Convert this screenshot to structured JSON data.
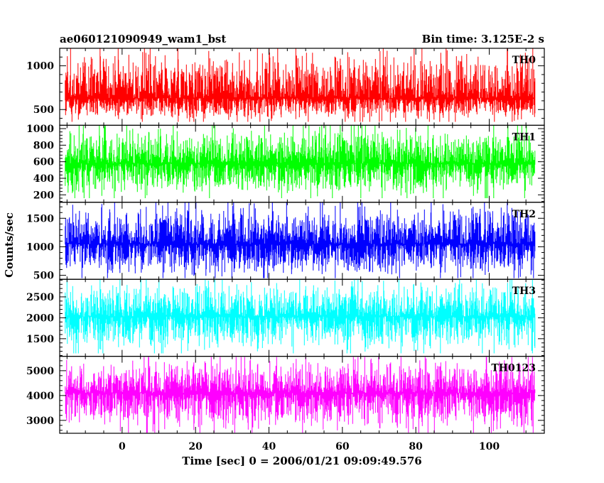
{
  "header": {
    "left_title": "ae060121090949_wam1_bst",
    "right_title": "Bin time: 3.125E-2 s"
  },
  "chart_data": {
    "type": "line",
    "title": "ae060121090949_wam1_bst",
    "subtitle": "Bin time: 3.125E-2 s",
    "xlabel": "Time [sec] 0 = 2006/01/21 09:09:49.576",
    "ylabel": "Counts/sec",
    "xlim": [
      -17,
      115
    ],
    "x_ticks": [
      0,
      20,
      40,
      60,
      80,
      100
    ],
    "x_data_range": [
      -15.5,
      112.5
    ],
    "bin_time_s": 0.03125,
    "grid": false,
    "legend": "none",
    "panels": [
      {
        "name": "TH0",
        "color": "#ff0000",
        "ylim": [
          320,
          1200
        ],
        "y_ticks": [
          500,
          1000
        ],
        "mean": 630,
        "low": 360,
        "high": 1200
      },
      {
        "name": "TH1",
        "color": "#00ff00",
        "ylim": [
          110,
          1040
        ],
        "y_ticks": [
          200,
          400,
          600,
          800,
          1000
        ],
        "mean": 580,
        "low": 160,
        "high": 1040
      },
      {
        "name": "TH2",
        "color": "#0000ff",
        "ylim": [
          430,
          1780
        ],
        "y_ticks": [
          500,
          1000,
          1500
        ],
        "mean": 1050,
        "low": 450,
        "high": 1780
      },
      {
        "name": "TH3",
        "color": "#00ffff",
        "ylim": [
          1080,
          2920
        ],
        "y_ticks": [
          1500,
          2000,
          2500
        ],
        "mean": 2030,
        "low": 1150,
        "high": 2920
      },
      {
        "name": "TH0123",
        "color": "#ff00ff",
        "ylim": [
          2480,
          5580
        ],
        "y_ticks": [
          3000,
          4000,
          5000
        ],
        "mean": 4100,
        "low": 2500,
        "high": 5550
      }
    ]
  }
}
